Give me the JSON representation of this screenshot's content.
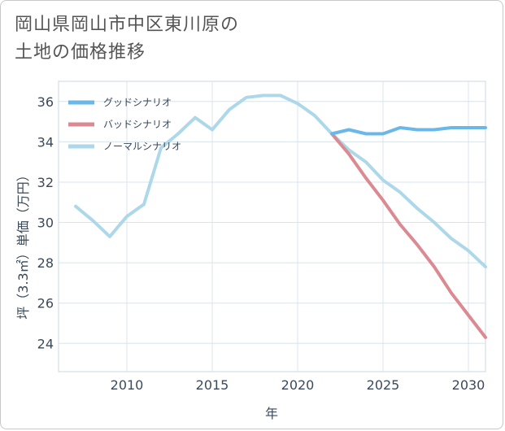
{
  "header": {
    "title_line1": "岡山県岡山市中区東川原の",
    "title_line2": "土地の価格推移"
  },
  "chart_data": {
    "type": "line",
    "xlabel": "年",
    "ylabel": "坪（3.3㎡）単価（万円）",
    "xlim": [
      2006,
      2031
    ],
    "ylim": [
      22.6,
      37.0
    ],
    "x_ticks": [
      2010,
      2015,
      2020,
      2025,
      2030
    ],
    "y_ticks": [
      24,
      26,
      28,
      30,
      32,
      34,
      36
    ],
    "grid": true,
    "legend_position": "top-left",
    "series": [
      {
        "name": "グッドシナリオ",
        "color": "#6ab8ea",
        "x": [
          2022,
          2023,
          2024,
          2025,
          2026,
          2027,
          2028,
          2029,
          2030,
          2031
        ],
        "values": [
          34.4,
          34.6,
          34.4,
          34.4,
          34.7,
          34.6,
          34.6,
          34.7,
          34.7,
          34.7
        ]
      },
      {
        "name": "バッドシナリオ",
        "color": "#dc8a92",
        "x": [
          2022,
          2023,
          2024,
          2025,
          2026,
          2027,
          2028,
          2029,
          2030,
          2031
        ],
        "values": [
          34.4,
          33.4,
          32.2,
          31.1,
          29.9,
          28.9,
          27.8,
          26.5,
          25.4,
          24.3
        ]
      },
      {
        "name": "ノーマルシナリオ",
        "color": "#add8e9",
        "x": [
          2007,
          2008,
          2009,
          2010,
          2011,
          2012,
          2013,
          2014,
          2015,
          2016,
          2017,
          2018,
          2019,
          2020,
          2021,
          2022,
          2023,
          2024,
          2025,
          2026,
          2027,
          2028,
          2029,
          2030,
          2031
        ],
        "values": [
          30.8,
          30.1,
          29.3,
          30.3,
          30.9,
          33.7,
          34.4,
          35.2,
          34.6,
          35.6,
          36.2,
          36.3,
          36.3,
          35.9,
          35.3,
          34.4,
          33.6,
          33.0,
          32.1,
          31.5,
          30.7,
          30.0,
          29.2,
          28.6,
          27.8
        ]
      }
    ]
  }
}
